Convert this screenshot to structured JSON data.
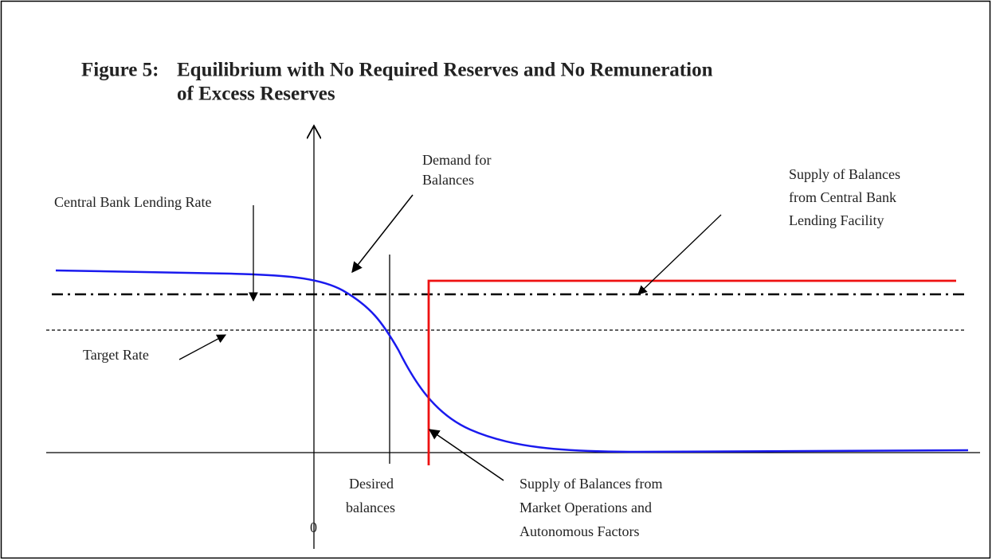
{
  "title": {
    "label": "Figure 5:",
    "lines": [
      "Equilibrium with No Required Reserves and No Remuneration",
      "of Excess Reserves"
    ]
  },
  "labels": {
    "demand": [
      "Demand for",
      "Balances"
    ],
    "lending_rate": [
      "Central Bank Lending Rate"
    ],
    "target_rate": [
      "Target Rate"
    ],
    "supply_facility": [
      "Supply of Balances",
      "from Central Bank",
      "Lending Facility"
    ],
    "origin": [
      "0"
    ],
    "desired": [
      "Desired",
      "balances"
    ],
    "supply_market": [
      "Supply of Balances from",
      "Market Operations and",
      "Autonomous Factors"
    ]
  }
}
